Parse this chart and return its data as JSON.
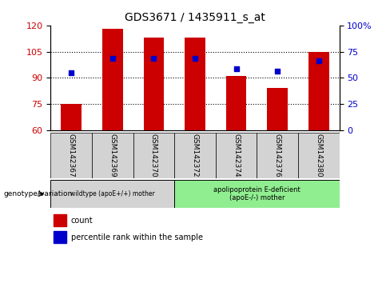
{
  "title": "GDS3671 / 1435911_s_at",
  "categories": [
    "GSM142367",
    "GSM142369",
    "GSM142370",
    "GSM142372",
    "GSM142374",
    "GSM142376",
    "GSM142380"
  ],
  "bar_heights": [
    75,
    118,
    113,
    113,
    91,
    84,
    105
  ],
  "blue_dot_left_axis": [
    93,
    101,
    101,
    101,
    95,
    94,
    100
  ],
  "ylim": [
    60,
    120
  ],
  "yticks_left": [
    60,
    75,
    90,
    105,
    120
  ],
  "yticks_right": [
    0,
    25,
    50,
    75,
    100
  ],
  "bar_color": "#cc0000",
  "dot_color": "#0000cc",
  "grid_color": "#000000",
  "background_plot": "#ffffff",
  "group1_label": "wildtype (apoE+/+) mother",
  "group2_label": "apolipoprotein E-deficient\n(apoE-/-) mother",
  "group1_color": "#d3d3d3",
  "group2_color": "#90ee90",
  "genotype_label": "genotype/variation",
  "legend_count": "count",
  "legend_percentile": "percentile rank within the sample",
  "bar_width": 0.5,
  "right_yaxis_color": "#0000cc",
  "left_yaxis_color": "#cc0000",
  "title_fontsize": 10
}
